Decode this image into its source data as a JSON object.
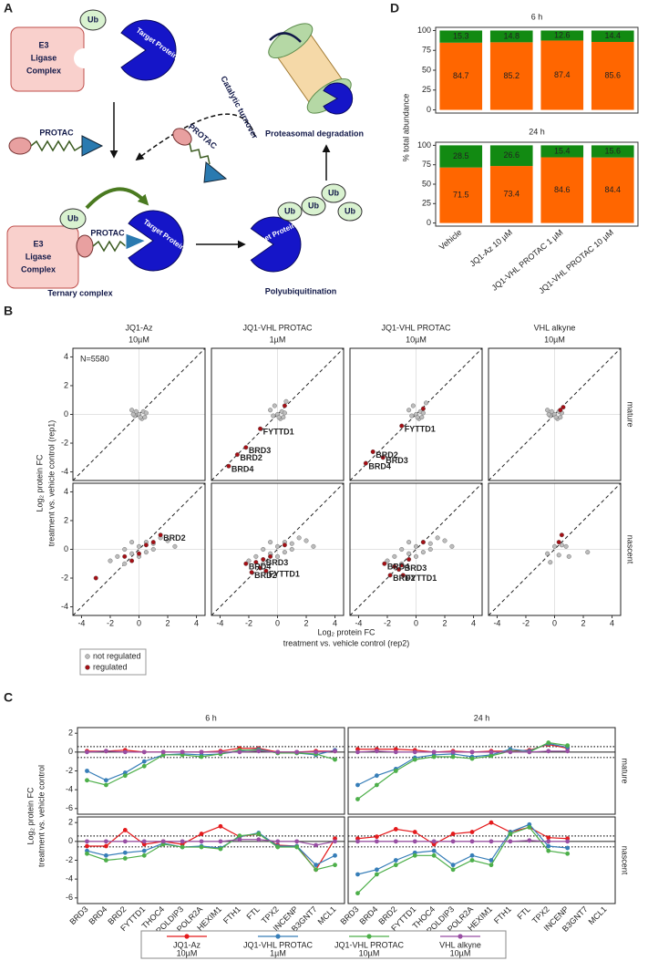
{
  "diagram": {
    "panel_label": "A",
    "e3_ligase": [
      "E3",
      "Ligase",
      "Complex"
    ],
    "ub": "Ub",
    "target_protein": "Target Protein",
    "protac": "PROTAC",
    "catalytic_turnover": "Catalytic turnover",
    "proteasomal_degradation": "Proteasomal degradation",
    "ternary_complex": "Ternary complex",
    "polyubiquitination": "Polyubiquitination"
  },
  "chart_data": [
    {
      "type": "stacked_bar_facets",
      "panel_label": "D",
      "ylabel": "% total abundance",
      "categories": [
        "Vehicle",
        "JQ1-Az 10 µM",
        "JQ1-VHL PROTAC 1 µM",
        "JQ1-VHL PROTAC 10 µM"
      ],
      "ylim": [
        -4,
        104
      ],
      "yticks": [
        0,
        25,
        50,
        75,
        100
      ],
      "facets": [
        {
          "title": "6 h",
          "series": [
            {
              "color": "#ff6600",
              "values": [
                84.7,
                85.2,
                87.4,
                85.6
              ]
            },
            {
              "color": "#128a12",
              "values": [
                15.3,
                14.8,
                12.6,
                14.4
              ]
            }
          ]
        },
        {
          "title": "24 h",
          "series": [
            {
              "color": "#ff6600",
              "values": [
                71.5,
                73.4,
                84.6,
                84.4
              ]
            },
            {
              "color": "#128a12",
              "values": [
                28.5,
                26.6,
                15.4,
                15.6
              ]
            }
          ]
        }
      ]
    },
    {
      "type": "scatter_facets",
      "panel_label": "B",
      "columns": [
        {
          "title": "JQ1-Az",
          "subtitle": "10µM"
        },
        {
          "title": "JQ1-VHL PROTAC",
          "subtitle": "1µM"
        },
        {
          "title": "JQ1-VHL PROTAC",
          "subtitle": "10µM"
        },
        {
          "title": "VHL alkyne",
          "subtitle": "10µM"
        }
      ],
      "rows": [
        "mature",
        "nascent"
      ],
      "xlabel": [
        "Log₂ protein FC",
        "treatment vs. vehicle control (rep2)"
      ],
      "ylabel": [
        "Log₂ protein FC",
        "treatment vs. vehicle control (rep1)"
      ],
      "xlim": [
        -4.6,
        4.6
      ],
      "ylim": [
        -4.6,
        4.6
      ],
      "xticks": [
        -4,
        -2,
        0,
        2,
        4
      ],
      "yticks": [
        -4,
        -2,
        0,
        2,
        4
      ],
      "note": "N=5580",
      "zero_lines": true,
      "diagonal": true,
      "legend": [
        {
          "name": "not regulated",
          "color": "#bdbdbd"
        },
        {
          "name": "regulated",
          "color": "#a50f15"
        }
      ],
      "panels": [
        {
          "series": [
            {
              "x": [
                0,
                0.3,
                -0.3,
                0.5,
                -0.5,
                0.2,
                -0.2,
                0.1,
                0.4,
                -0.4
              ],
              "values": [
                0,
                0.2,
                -0.1,
                0.1,
                0.3,
                -0.3,
                0.2,
                -0.2,
                -0.2,
                0
              ]
            }
          ]
        },
        {
          "series": [
            {
              "x": [
                0,
                0.3,
                -0.3,
                0.5,
                -0.5,
                0.2,
                -0.2,
                0.1,
                0.4,
                0.6
              ],
              "values": [
                0,
                0.2,
                -0.1,
                0.1,
                0.3,
                -0.3,
                0.6,
                -0.2,
                -0.2,
                0.9
              ]
            },
            {
              "x": [
                -3.4,
                -2.8,
                -2.2,
                -1.2,
                0.5
              ],
              "values": [
                -3.6,
                -2.8,
                -2.3,
                -1.0,
                0.6
              ]
            }
          ],
          "annotations": [
            {
              "text": "BRD2",
              "x": -2.8,
              "y": -2.8
            },
            {
              "text": "BRD3",
              "x": -2.2,
              "y": -2.3
            },
            {
              "text": "BRD4",
              "x": -3.4,
              "y": -3.6
            },
            {
              "text": "FYTTD1",
              "x": -1.2,
              "y": -1.0
            }
          ]
        },
        {
          "series": [
            {
              "x": [
                0,
                0.3,
                -0.3,
                0.5,
                -0.5,
                0.2,
                -0.2,
                0.1,
                0.4,
                0.7
              ],
              "values": [
                0,
                0.2,
                -0.1,
                0.1,
                0.3,
                -0.3,
                0.6,
                -0.2,
                -0.2,
                0.8
              ]
            },
            {
              "x": [
                -3.5,
                -3,
                -2.3,
                -1,
                0.5
              ],
              "values": [
                -3.4,
                -2.6,
                -3,
                -0.8,
                0.4
              ]
            }
          ],
          "annotations": [
            {
              "text": "BRD2",
              "x": -3,
              "y": -2.6
            },
            {
              "text": "BRD3",
              "x": -2.3,
              "y": -3
            },
            {
              "text": "BRD4",
              "x": -3.5,
              "y": -3.4
            },
            {
              "text": "FYTTD1",
              "x": -1,
              "y": -0.8
            }
          ]
        },
        {
          "series": [
            {
              "x": [
                0,
                0.3,
                -0.3,
                0.5,
                -0.5,
                0.2,
                -0.2,
                0.1,
                0.4,
                -0.4
              ],
              "values": [
                0,
                0.2,
                -0.1,
                0.1,
                0.3,
                -0.3,
                0.2,
                -0.2,
                -0.2,
                0
              ]
            },
            {
              "x": [
                0.4,
                0.6
              ],
              "values": [
                0.3,
                0.5
              ]
            }
          ]
        },
        {
          "series": [
            {
              "x": [
                -2,
                -1.5,
                -1,
                -0.5,
                0,
                0.5,
                1,
                1.5,
                2,
                -1,
                0,
                1,
                -0.5,
                0.5,
                2.5
              ],
              "values": [
                -0.8,
                -0.5,
                0,
                -0.3,
                0.2,
                0.5,
                0.4,
                0.8,
                0.6,
                -1,
                -0.5,
                0,
                0.5,
                -0.2,
                0.2
              ]
            },
            {
              "x": [
                -3,
                -1,
                -0.5,
                0,
                0.5,
                1,
                1.5
              ],
              "values": [
                -2,
                -0.5,
                -0.8,
                -0.3,
                0.3,
                0.5,
                1
              ]
            }
          ],
          "annotations": [
            {
              "text": "BRD2",
              "x": 1.5,
              "y": 1
            }
          ]
        },
        {
          "series": [
            {
              "x": [
                -2,
                -1.5,
                -1,
                -0.5,
                0,
                0.5,
                1,
                1.5,
                2,
                -1,
                0,
                1,
                -0.5,
                0.5,
                2.5
              ],
              "values": [
                -0.8,
                -0.5,
                0,
                -0.3,
                0.2,
                0.5,
                0.4,
                0.8,
                0.6,
                -1,
                -0.5,
                0,
                0.5,
                -0.2,
                0.2
              ]
            },
            {
              "x": [
                -2.2,
                -1.8,
                -1.5,
                -1.2,
                -1,
                -0.8,
                -0.5,
                0.5
              ],
              "values": [
                -1,
                -1.6,
                -0.9,
                -1.3,
                -0.7,
                -1.5,
                -0.5,
                0.3
              ]
            }
          ],
          "annotations": [
            {
              "text": "BRD4",
              "x": -2.2,
              "y": -1
            },
            {
              "text": "BRD2",
              "x": -1.8,
              "y": -1.6
            },
            {
              "text": "BRD3",
              "x": -1,
              "y": -0.7
            },
            {
              "text": "FYTTD1",
              "x": -0.8,
              "y": -1.5
            }
          ]
        },
        {
          "series": [
            {
              "x": [
                -2,
                -1.5,
                -1,
                -0.5,
                0,
                0.5,
                1,
                1.5,
                2,
                -1,
                0,
                1,
                -0.5,
                0.5,
                2.5
              ],
              "values": [
                -0.8,
                -0.5,
                0,
                -0.3,
                0.2,
                0.5,
                0.4,
                0.8,
                0.6,
                -1,
                -0.5,
                0,
                0.5,
                -0.2,
                0.2
              ]
            },
            {
              "x": [
                -2.2,
                -1.8,
                -1.5,
                -1.2,
                -1,
                -0.9,
                -0.5,
                0.5
              ],
              "values": [
                -1,
                -1.8,
                -1.2,
                -1.4,
                -1.1,
                -1.8,
                -0.7,
                0.5
              ]
            }
          ],
          "annotations": [
            {
              "text": "BRD4",
              "x": -2.2,
              "y": -1
            },
            {
              "text": "BRD2",
              "x": -1.8,
              "y": -1.8
            },
            {
              "text": "BRD3",
              "x": -1,
              "y": -1.1
            },
            {
              "text": "FYTTD1",
              "x": -0.9,
              "y": -1.8
            }
          ]
        },
        {
          "series": [
            {
              "x": [
                -0.5,
                0,
                0.5,
                1,
                -0.3,
                0.3,
                0.8,
                2.3
              ],
              "values": [
                -0.3,
                0.2,
                0.3,
                -0.5,
                -0.9,
                -0.4,
                0.2,
                -0.2
              ]
            },
            {
              "x": [
                0.3,
                0.5
              ],
              "values": [
                0.5,
                1.0
              ]
            }
          ]
        }
      ]
    },
    {
      "type": "line_facets",
      "panel_label": "C",
      "columns": [
        "6 h",
        "24 h"
      ],
      "rows": [
        "mature",
        "nascent"
      ],
      "ylabel": [
        "Log₂ protein FC",
        "treatment vs. vehicle control"
      ],
      "categories": [
        "BRD3",
        "BRD4",
        "BRD2",
        "FYTTD1",
        "THOC4",
        "POLDIP3",
        "POLR2A",
        "HEXIM1",
        "FTH1",
        "FTL",
        "TPX2",
        "INCENP",
        "B3GNT7",
        "MCL1"
      ],
      "ylim": [
        -6.6,
        2.6
      ],
      "yticks": [
        -6,
        -4,
        -2,
        0,
        2
      ],
      "threshold": [
        0.58,
        -0.58
      ],
      "zero_line": true,
      "legend": [
        {
          "name": "JQ1-Az",
          "dose": "10µM",
          "color": "#e41a1c"
        },
        {
          "name": "JQ1-VHL PROTAC",
          "dose": "1µM",
          "color": "#377eb8"
        },
        {
          "name": "JQ1-VHL PROTAC",
          "dose": "10µM",
          "color": "#4daf4a"
        },
        {
          "name": "VHL alkyne",
          "dose": "10µM",
          "color": "#984ea3"
        }
      ],
      "panels": [
        {
          "series": [
            {
              "values": [
                0.1,
                0.1,
                0.2,
                0,
                0,
                0,
                0,
                0.1,
                0.4,
                0.4,
                0,
                0,
                0.1,
                0.1
              ]
            },
            {
              "values": [
                -2,
                -3,
                -2.2,
                -1,
                -0.3,
                -0.2,
                -0.3,
                -0.2,
                0.1,
                0.3,
                -0.1,
                -0.1,
                -0.3,
                0.2
              ]
            },
            {
              "values": [
                -3,
                -3.5,
                -2.5,
                -1.5,
                -0.3,
                -0.3,
                -0.5,
                -0.2,
                0.2,
                0.2,
                -0.1,
                -0.1,
                -0.2,
                -0.8
              ]
            },
            {
              "values": [
                0,
                0.1,
                0,
                0,
                0,
                0,
                0,
                0,
                0,
                0.1,
                0,
                0,
                0,
                0.1
              ]
            }
          ]
        },
        {
          "series": [
            {
              "values": [
                0.3,
                0.3,
                0.3,
                0.2,
                0,
                0.1,
                0,
                0.1,
                0.1,
                0.2,
                0.8,
                0.4,
                null,
                null
              ]
            },
            {
              "values": [
                -3.5,
                -2.5,
                -1.8,
                -0.6,
                -0.3,
                -0.2,
                -0.5,
                -0.3,
                0.3,
                0.1,
                0.9,
                0.5,
                null,
                null
              ]
            },
            {
              "values": [
                -5,
                -3.5,
                -2,
                -0.8,
                -0.5,
                -0.5,
                -0.7,
                -0.4,
                0.1,
                0,
                1,
                0.7,
                null,
                null
              ]
            },
            {
              "values": [
                0,
                0.1,
                0,
                0,
                0,
                0,
                0,
                0,
                0,
                0,
                0.1,
                0.1,
                null,
                null
              ]
            }
          ]
        },
        {
          "series": [
            {
              "values": [
                -0.5,
                -0.5,
                1.2,
                -0.3,
                0,
                -0.3,
                0.8,
                1.6,
                0.5,
                0.8,
                -0.4,
                -0.5,
                -3,
                0.3
              ]
            },
            {
              "values": [
                -1,
                -1.5,
                -1.2,
                -1,
                -0.2,
                -0.6,
                -0.5,
                -0.7,
                0.5,
                0.9,
                -0.5,
                -0.5,
                -2.5,
                -1.5
              ]
            },
            {
              "values": [
                -1.3,
                -2,
                -1.8,
                -1.5,
                -0.3,
                -0.6,
                -0.6,
                -0.8,
                0.6,
                0.8,
                -0.6,
                -0.6,
                -3,
                -2.5
              ]
            },
            {
              "values": [
                0,
                0,
                0,
                0,
                0,
                0,
                0,
                0,
                0.2,
                0.2,
                0,
                0,
                -0.4,
                0
              ]
            }
          ]
        },
        {
          "series": [
            {
              "values": [
                0.3,
                0.5,
                1.3,
                1,
                -0.3,
                0.8,
                1,
                2,
                1,
                1.5,
                0.4,
                0.3,
                null,
                null
              ]
            },
            {
              "values": [
                -3.5,
                -3,
                -2,
                -1.2,
                -1,
                -2.5,
                -1.5,
                -2,
                1,
                1.8,
                -0.5,
                -0.7,
                null,
                null
              ]
            },
            {
              "values": [
                -5.5,
                -3.5,
                -2.5,
                -1.5,
                -1.5,
                -3,
                -2,
                -2.5,
                0.8,
                1.5,
                -1,
                -1.3,
                null,
                null
              ]
            },
            {
              "values": [
                0,
                0,
                0,
                0,
                0,
                0,
                0,
                0,
                0,
                0.1,
                0,
                0,
                null,
                null
              ]
            }
          ]
        }
      ]
    }
  ]
}
